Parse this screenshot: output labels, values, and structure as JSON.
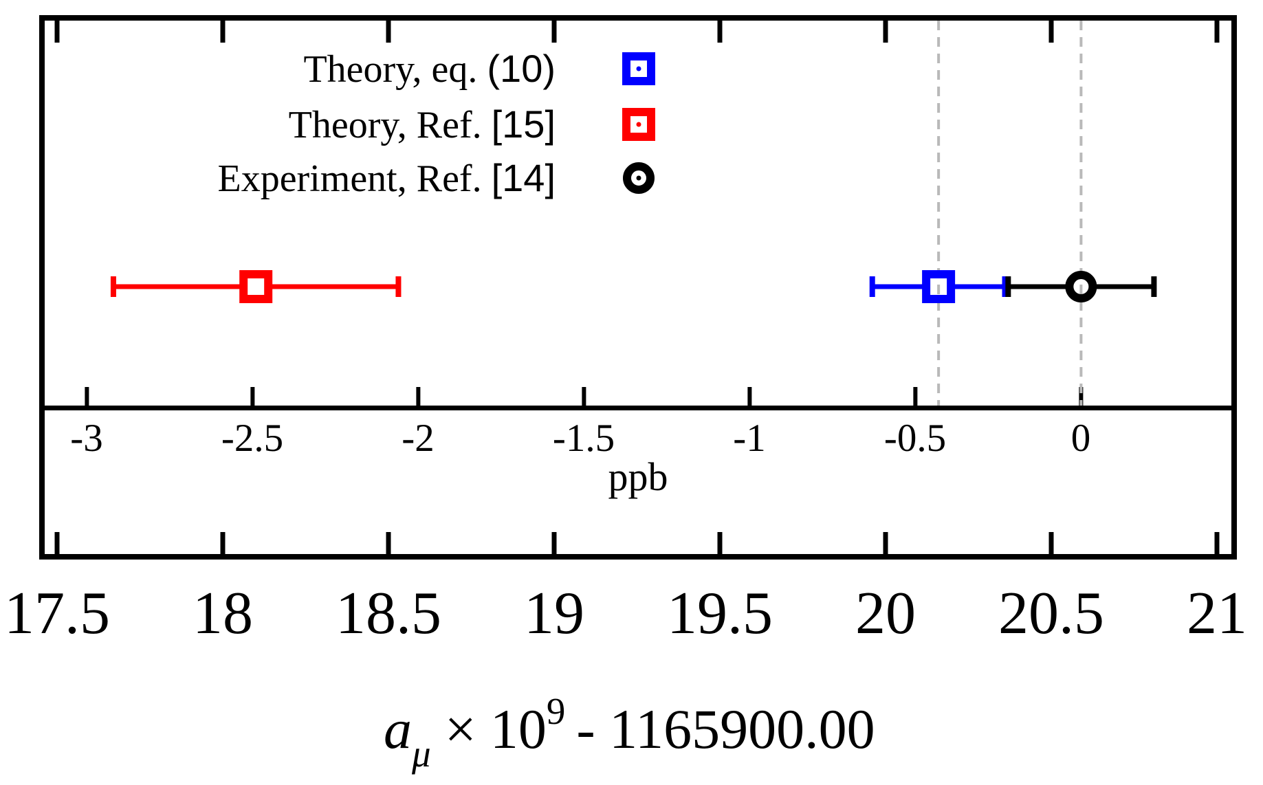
{
  "legend": {
    "entries": [
      {
        "text": "Theory, eq. ",
        "ref": "(10)",
        "full": "Theory, eq. (10)",
        "marker": "open-square-dot",
        "color": "#0000ff"
      },
      {
        "text": "Theory, Ref. ",
        "ref": "[15]",
        "full": "Theory, Ref. [15]",
        "marker": "open-square-dot",
        "color": "#ff0000"
      },
      {
        "text": "Experiment, Ref. ",
        "ref": "[14]",
        "full": "Experiment, Ref. [14]",
        "marker": "open-circle-dot",
        "color": "#000000"
      }
    ]
  },
  "chart_data": {
    "type": "scatter",
    "subtype": "horizontal-error-bars",
    "background": "#ffffff",
    "frame_color": "#000000",
    "marker_fill": "#ffffff",
    "series": [
      {
        "name": "Theory, eq. (10)",
        "value": 20.16,
        "error": 0.2,
        "color": "#0000ff",
        "marker": "open-square"
      },
      {
        "name": "Theory, Ref. [15]",
        "value": 18.1,
        "error": 0.43,
        "color": "#ff0000",
        "marker": "open-square"
      },
      {
        "name": "Experiment, Ref. [14]",
        "value": 20.59,
        "error": 0.22,
        "color": "#000000",
        "marker": "open-circle"
      }
    ],
    "bottom_axis": {
      "title": "a_μ × 10⁹ - 1165900.00",
      "title_parts": {
        "variable": "a",
        "subscript": "μ",
        "times": "×",
        "base": "10",
        "exponent": "9",
        "rest": "- 1165900.00"
      },
      "range": [
        17.45,
        21.05
      ],
      "ticks": [
        {
          "value": 17.5,
          "label": "17.5"
        },
        {
          "value": 18,
          "label": "18"
        },
        {
          "value": 18.5,
          "label": "18.5"
        },
        {
          "value": 19,
          "label": "19"
        },
        {
          "value": 19.5,
          "label": "19.5"
        },
        {
          "value": 20,
          "label": "20"
        },
        {
          "value": 20.5,
          "label": "20.5"
        },
        {
          "value": 21,
          "label": "21"
        }
      ]
    },
    "ppb_axis": {
      "title": "ppb",
      "zero_at_bottom_value": 20.59,
      "ticks": [
        {
          "value": -3,
          "label": "-3"
        },
        {
          "value": -2.5,
          "label": "-2.5"
        },
        {
          "value": -2,
          "label": "-2"
        },
        {
          "value": -1.5,
          "label": "-1.5"
        },
        {
          "value": -1,
          "label": "-1"
        },
        {
          "value": -0.5,
          "label": "-0.5"
        },
        {
          "value": 0,
          "label": "0"
        }
      ]
    },
    "guide_lines": {
      "at_values": [
        20.16,
        20.59
      ],
      "color": "#b9b9b9",
      "style": "dashed"
    }
  }
}
